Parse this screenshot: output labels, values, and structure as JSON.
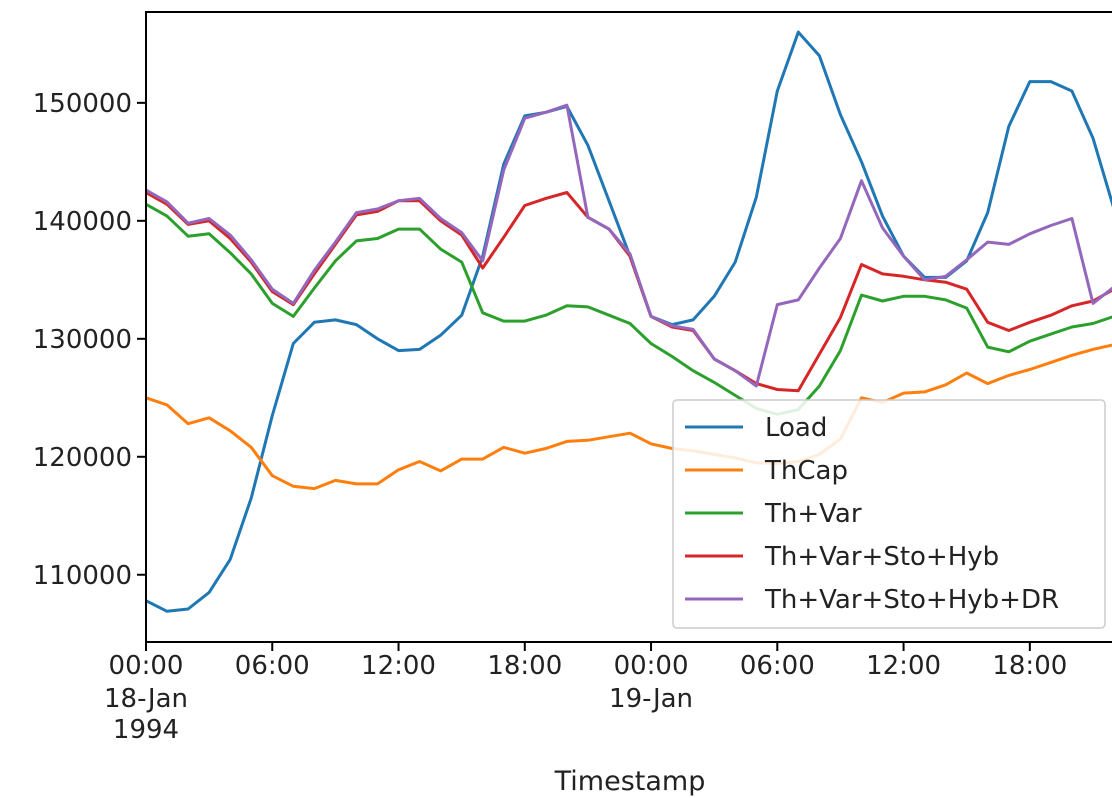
{
  "chart_data": {
    "type": "line",
    "xlabel": "Timestamp",
    "ylabel": "",
    "x_start": "1994-01-18 00:00",
    "x_end": "1994-01-19 22:00",
    "xlim": [
      "1994-01-18 00:00",
      "1994-01-19 22:00"
    ],
    "ylim": [
      104300,
      157700
    ],
    "grid": false,
    "legend_position": "lower-right",
    "yticks": [
      110000,
      120000,
      130000,
      140000,
      150000
    ],
    "ytick_labels": [
      "110000",
      "120000",
      "130000",
      "140000",
      "150000"
    ],
    "xticks": [
      {
        "time": "1994-01-18 00:00",
        "lines": [
          "00:00",
          "18-Jan",
          "1994"
        ]
      },
      {
        "time": "1994-01-18 06:00",
        "lines": [
          "06:00"
        ]
      },
      {
        "time": "1994-01-18 12:00",
        "lines": [
          "12:00"
        ]
      },
      {
        "time": "1994-01-18 18:00",
        "lines": [
          "18:00"
        ]
      },
      {
        "time": "1994-01-19 00:00",
        "lines": [
          "00:00",
          "19-Jan"
        ]
      },
      {
        "time": "1994-01-19 06:00",
        "lines": [
          "06:00"
        ]
      },
      {
        "time": "1994-01-19 12:00",
        "lines": [
          "12:00"
        ]
      },
      {
        "time": "1994-01-19 18:00",
        "lines": [
          "18:00"
        ]
      }
    ],
    "x": [
      "1994-01-18 00:00",
      "1994-01-18 01:00",
      "1994-01-18 02:00",
      "1994-01-18 03:00",
      "1994-01-18 04:00",
      "1994-01-18 05:00",
      "1994-01-18 06:00",
      "1994-01-18 07:00",
      "1994-01-18 08:00",
      "1994-01-18 09:00",
      "1994-01-18 10:00",
      "1994-01-18 11:00",
      "1994-01-18 12:00",
      "1994-01-18 13:00",
      "1994-01-18 14:00",
      "1994-01-18 15:00",
      "1994-01-18 16:00",
      "1994-01-18 17:00",
      "1994-01-18 18:00",
      "1994-01-18 19:00",
      "1994-01-18 20:00",
      "1994-01-18 21:00",
      "1994-01-18 22:00",
      "1994-01-18 23:00",
      "1994-01-19 00:00",
      "1994-01-19 01:00",
      "1994-01-19 02:00",
      "1994-01-19 03:00",
      "1994-01-19 04:00",
      "1994-01-19 05:00",
      "1994-01-19 06:00",
      "1994-01-19 07:00",
      "1994-01-19 08:00",
      "1994-01-19 09:00",
      "1994-01-19 10:00",
      "1994-01-19 11:00",
      "1994-01-19 12:00",
      "1994-01-19 13:00",
      "1994-01-19 14:00",
      "1994-01-19 15:00",
      "1994-01-19 16:00",
      "1994-01-19 17:00",
      "1994-01-19 18:00",
      "1994-01-19 19:00",
      "1994-01-19 20:00",
      "1994-01-19 21:00",
      "1994-01-19 22:00"
    ],
    "series": [
      {
        "name": "Load",
        "color": "#1f77b4",
        "values": [
          107800,
          106900,
          107100,
          108500,
          111300,
          116500,
          123500,
          129600,
          131400,
          131600,
          131200,
          130000,
          129000,
          129100,
          130300,
          132000,
          137000,
          144800,
          148900,
          149200,
          149700,
          146400,
          141700,
          137000,
          131900,
          131200,
          131600,
          133600,
          136500,
          142000,
          151000,
          156000,
          154000,
          149000,
          145000,
          140400,
          137000,
          135200,
          135200,
          136600,
          140700,
          148000,
          151800,
          151800,
          151000,
          147000,
          141000
        ]
      },
      {
        "name": "ThCap",
        "color": "#ff7f0e",
        "values": [
          125000,
          124400,
          122800,
          123300,
          122200,
          120800,
          118400,
          117500,
          117300,
          118000,
          117700,
          117700,
          118900,
          119600,
          118800,
          119800,
          119800,
          120800,
          120300,
          120700,
          121300,
          121400,
          121700,
          122000,
          121100,
          120700,
          120500,
          120200,
          119900,
          119500,
          119400,
          119600,
          120200,
          121500,
          125000,
          124600,
          125400,
          125500,
          126100,
          127100,
          126200,
          126900,
          127400,
          128000,
          128600,
          129100,
          129500
        ]
      },
      {
        "name": "Th+Var",
        "color": "#2ca02c",
        "values": [
          141400,
          140400,
          138700,
          138900,
          137300,
          135500,
          133000,
          131900,
          134300,
          136600,
          138300,
          138500,
          139300,
          139300,
          137600,
          136500,
          132200,
          131500,
          131500,
          132000,
          132800,
          132700,
          132000,
          131300,
          129600,
          128500,
          127300,
          126300,
          125200,
          124100,
          123600,
          124000,
          126000,
          129000,
          133700,
          133200,
          133600,
          133600,
          133300,
          132600,
          129300,
          128900,
          129800,
          130400,
          131000,
          131300,
          131900
        ]
      },
      {
        "name": "Th+Var+Sto+Hyb",
        "color": "#d62728",
        "values": [
          142400,
          141400,
          139700,
          140000,
          138500,
          136500,
          134000,
          132900,
          135500,
          138000,
          140500,
          140800,
          141700,
          141700,
          140000,
          138800,
          136000,
          138600,
          141300,
          141900,
          142400,
          140300,
          139300,
          137000,
          131900,
          131000,
          130700,
          128300,
          127300,
          126200,
          125700,
          125600,
          128700,
          131800,
          136300,
          135500,
          135300,
          135000,
          134800,
          134200,
          131400,
          130700,
          131400,
          132000,
          132800,
          133200,
          134200
        ]
      },
      {
        "name": "Th+Var+Sto+Hyb+DR",
        "color": "#9467bd",
        "values": [
          142600,
          141600,
          139800,
          140200,
          138800,
          136700,
          134200,
          133000,
          135800,
          138200,
          140700,
          141000,
          141700,
          141900,
          140200,
          139000,
          136600,
          144300,
          148700,
          149200,
          149800,
          140300,
          139300,
          137200,
          131900,
          131100,
          130800,
          128300,
          127300,
          126000,
          132900,
          133300,
          136000,
          138500,
          143400,
          139400,
          137000,
          135000,
          135300,
          136700,
          138200,
          138000,
          138900,
          139600,
          140200,
          133000,
          134400
        ]
      }
    ]
  }
}
